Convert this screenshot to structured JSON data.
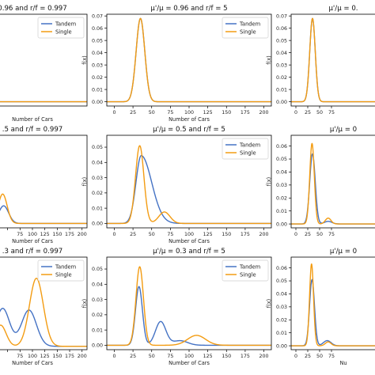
{
  "series_colors": {
    "tandem": "#4472c4",
    "single": "#f39c12"
  },
  "legend": {
    "tandem_label": "Tandem",
    "single_label": "Single"
  },
  "chart_data": [
    {
      "type": "line",
      "title": "0.96 and r/f = 0.997",
      "xlabel": "Number of Cars",
      "ylabel": "",
      "xticks": [],
      "xtick_labels": [],
      "yticks": [],
      "ytick_labels": [],
      "xlim": [
        -10,
        210
      ],
      "ylim": [
        -0.0035,
        0.0714
      ],
      "legend": "top-right",
      "series": [
        {
          "name": "Tandem",
          "peaks": []
        },
        {
          "name": "Single",
          "peaks": []
        }
      ]
    },
    {
      "type": "line",
      "title": "μ'/μ = 0.96 and r/f = 5",
      "xlabel": "Number of Cars",
      "ylabel": "f(x)",
      "xticks": [
        0,
        25,
        50,
        75,
        100,
        125,
        150,
        175,
        200
      ],
      "xtick_labels": [
        "0",
        "25",
        "50",
        "75",
        "100",
        "125",
        "150",
        "175",
        "200"
      ],
      "yticks": [
        0,
        0.01,
        0.02,
        0.03,
        0.04,
        0.05,
        0.06,
        0.07
      ],
      "ytick_labels": [
        "0.00",
        "0.01",
        "0.02",
        "0.03",
        "0.04",
        "0.05",
        "0.06",
        "0.07"
      ],
      "xlim": [
        -10,
        210
      ],
      "ylim": [
        -0.0035,
        0.0714
      ],
      "legend": "top-right",
      "series": [
        {
          "name": "Tandem",
          "peaks": [
            {
              "mean": 35,
              "sd": 5.8,
              "height": 0.068
            }
          ]
        },
        {
          "name": "Single",
          "peaks": [
            {
              "mean": 35,
              "sd": 5.8,
              "height": 0.068
            }
          ]
        }
      ]
    },
    {
      "type": "line",
      "title": "μ'/μ = 0.",
      "xlabel": "",
      "ylabel": "f(x)",
      "xticks": [
        0,
        25,
        50,
        75
      ],
      "xtick_labels": [
        "0",
        "25",
        "50",
        "75"
      ],
      "yticks": [
        0,
        0.01,
        0.02,
        0.03,
        0.04,
        0.05,
        0.06,
        0.07
      ],
      "ytick_labels": [
        "0.00",
        "0.01",
        "0.02",
        "0.03",
        "0.04",
        "0.05",
        "0.06",
        "0.07"
      ],
      "xlim": [
        -10,
        210
      ],
      "ylim": [
        -0.0035,
        0.0714
      ],
      "legend": "",
      "series": [
        {
          "name": "Tandem",
          "peaks": [
            {
              "mean": 35,
              "sd": 5.8,
              "height": 0.068
            }
          ]
        },
        {
          "name": "Single",
          "peaks": [
            {
              "mean": 35,
              "sd": 5.8,
              "height": 0.068
            }
          ]
        }
      ]
    },
    {
      "type": "line",
      "title": ".5 and r/f = 0.997",
      "xlabel": "Number of Cars",
      "ylabel": "",
      "xticks": [
        50,
        75,
        100,
        125,
        150,
        175,
        200
      ],
      "xtick_labels": [
        "",
        "75",
        "100",
        "125",
        "150",
        "175",
        "200"
      ],
      "yticks": [],
      "ytick_labels": [],
      "xlim": [
        -10,
        210
      ],
      "ylim": [
        -0.003,
        0.06
      ],
      "legend": "",
      "series": [
        {
          "name": "Tandem",
          "peaks": [
            {
              "mean": 42,
              "sd": 10,
              "height": 0.012
            }
          ]
        },
        {
          "name": "Single",
          "peaks": [
            {
              "mean": 40,
              "sd": 9,
              "height": 0.02
            }
          ]
        }
      ]
    },
    {
      "type": "line",
      "title": "μ'/μ = 0.5 and r/f = 5",
      "xlabel": "Number of Cars",
      "ylabel": "f(x)",
      "xticks": [
        0,
        25,
        50,
        75,
        100,
        125,
        150,
        175,
        200
      ],
      "xtick_labels": [
        "0",
        "25",
        "50",
        "75",
        "100",
        "125",
        "150",
        "175",
        "200"
      ],
      "yticks": [
        0,
        0.01,
        0.02,
        0.03,
        0.04,
        0.05
      ],
      "ytick_labels": [
        "0.00",
        "0.01",
        "0.02",
        "0.03",
        "0.04",
        "0.05"
      ],
      "xlim": [
        -10,
        210
      ],
      "ylim": [
        -0.0029,
        0.0578
      ],
      "legend": "top-right",
      "series": [
        {
          "name": "Tandem",
          "peaks": [
            {
              "mean": 36,
              "sd": 7,
              "height": 0.0445,
              "sd_right": 14
            }
          ]
        },
        {
          "name": "Single",
          "peaks": [
            {
              "mean": 34,
              "sd": 5.6,
              "height": 0.051
            },
            {
              "mean": 67,
              "sd": 7.5,
              "height": 0.0075
            }
          ]
        }
      ]
    },
    {
      "type": "line",
      "title": "μ'/μ = 0",
      "xlabel": "",
      "ylabel": "f(x)",
      "xticks": [
        0,
        25,
        50,
        75
      ],
      "xtick_labels": [
        "0",
        "25",
        "50",
        "75"
      ],
      "yticks": [
        0,
        0.01,
        0.02,
        0.03,
        0.04,
        0.05,
        0.06
      ],
      "ytick_labels": [
        "0.00",
        "0.01",
        "0.02",
        "0.03",
        "0.04",
        "0.05",
        "0.06"
      ],
      "xlim": [
        -10,
        210
      ],
      "ylim": [
        -0.003,
        0.0683
      ],
      "legend": "",
      "series": [
        {
          "name": "Tandem",
          "peaks": [
            {
              "mean": 35,
              "sd": 5.8,
              "height": 0.054
            },
            {
              "mean": 68,
              "sd": 8,
              "height": 0.002
            }
          ]
        },
        {
          "name": "Single",
          "peaks": [
            {
              "mean": 34,
              "sd": 4.8,
              "height": 0.062
            },
            {
              "mean": 68,
              "sd": 6,
              "height": 0.0045
            }
          ]
        }
      ]
    },
    {
      "type": "line",
      "title": ".3 and r/f = 0.997",
      "xlabel": "Number of Cars",
      "ylabel": "",
      "xticks": [
        50,
        75,
        100,
        125,
        150,
        175,
        200
      ],
      "xtick_labels": [
        "",
        "75",
        "100",
        "125",
        "150",
        "175",
        "200"
      ],
      "yticks": [],
      "ytick_labels": [],
      "xlim": [
        -10,
        210
      ],
      "ylim": [
        -0.0006,
        0.016
      ],
      "legend": "top-right",
      "series": [
        {
          "name": "Tandem",
          "peaks": [
            {
              "mean": 40,
              "sd": 14,
              "height": 0.0068
            },
            {
              "mean": 93,
              "sd": 15,
              "height": 0.0065
            }
          ]
        },
        {
          "name": "Single",
          "peaks": [
            {
              "mean": 36,
              "sd": 11,
              "height": 0.0038
            },
            {
              "mean": 108,
              "sd": 14,
              "height": 0.0122
            }
          ]
        }
      ]
    },
    {
      "type": "line",
      "title": "μ'/μ = 0.3 and r/f = 5",
      "xlabel": "Number of Cars",
      "ylabel": "f(x)",
      "xticks": [
        0,
        25,
        50,
        75,
        100,
        125,
        150,
        175,
        200
      ],
      "xtick_labels": [
        "0",
        "25",
        "50",
        "75",
        "100",
        "125",
        "150",
        "175",
        "200"
      ],
      "yticks": [
        0,
        0.01,
        0.02,
        0.03,
        0.04,
        0.05
      ],
      "ytick_labels": [
        "0.00",
        "0.01",
        "0.02",
        "0.03",
        "0.04",
        "0.05"
      ],
      "xlim": [
        -10,
        210
      ],
      "ylim": [
        -0.0029,
        0.0578
      ],
      "legend": "top-right",
      "series": [
        {
          "name": "Tandem",
          "peaks": [
            {
              "mean": 33,
              "sd": 4.6,
              "height": 0.0385
            },
            {
              "mean": 62,
              "sd": 7,
              "height": 0.0155
            },
            {
              "mean": 88,
              "sd": 10,
              "height": 0.003
            }
          ]
        },
        {
          "name": "Single",
          "peaks": [
            {
              "mean": 34,
              "sd": 5.0,
              "height": 0.0515
            },
            {
              "mean": 110,
              "sd": 12,
              "height": 0.0065
            }
          ]
        }
      ]
    },
    {
      "type": "line",
      "title": "μ'/μ = 0",
      "xlabel": "Nu",
      "ylabel": "f(x)",
      "xticks": [
        0,
        25,
        50,
        75
      ],
      "xtick_labels": [
        "0",
        "25",
        "50",
        "75"
      ],
      "yticks": [
        0,
        0.01,
        0.02,
        0.03,
        0.04,
        0.05,
        0.06
      ],
      "ytick_labels": [
        "0.00",
        "0.01",
        "0.02",
        "0.03",
        "0.04",
        "0.05",
        "0.06"
      ],
      "xlim": [
        -10,
        210
      ],
      "ylim": [
        -0.003,
        0.0683
      ],
      "legend": "",
      "series": [
        {
          "name": "Tandem",
          "peaks": [
            {
              "mean": 34,
              "sd": 5.2,
              "height": 0.051
            },
            {
              "mean": 66,
              "sd": 8,
              "height": 0.004
            }
          ]
        },
        {
          "name": "Single",
          "peaks": [
            {
              "mean": 33,
              "sd": 4.2,
              "height": 0.063
            },
            {
              "mean": 68,
              "sd": 6,
              "height": 0.003
            }
          ]
        }
      ]
    }
  ]
}
